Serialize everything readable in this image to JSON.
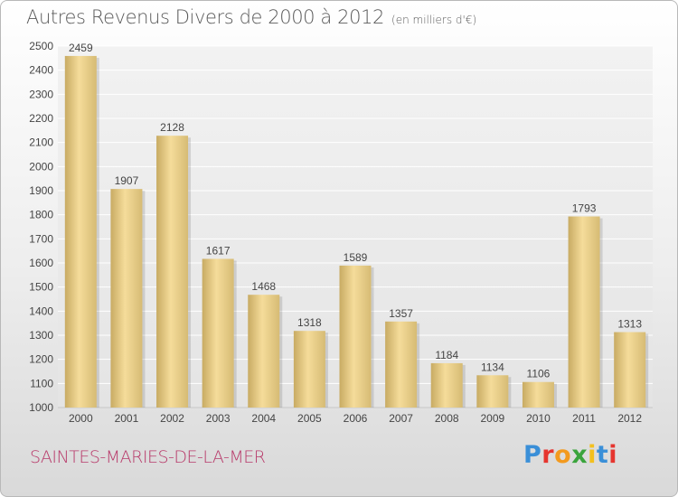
{
  "header": {
    "title": "Autres Revenus Divers de 2000 à 2012",
    "subtitle": "(en milliers d'€)"
  },
  "footer": {
    "commune": "SAINTES-MARIES-DE-LA-MER",
    "logo_text": "Proxiti"
  },
  "colors": {
    "bar_light": "#f5dc9a",
    "bar_dark": "#c8ab63",
    "commune_text": "#b83a6a",
    "logo_letters": [
      "#3a8fd8",
      "#e6352f",
      "#f39a1e",
      "#3aa43c",
      "#f3c01e",
      "#3a8fd8",
      "#e6352f"
    ]
  },
  "chart_data": {
    "type": "bar",
    "title": "Autres Revenus Divers de 2000 à 2012",
    "subtitle": "(en milliers d'€)",
    "categories": [
      "2000",
      "2001",
      "2002",
      "2003",
      "2004",
      "2005",
      "2006",
      "2007",
      "2008",
      "2009",
      "2010",
      "2011",
      "2012"
    ],
    "values": [
      2459,
      1907,
      2128,
      1617,
      1468,
      1318,
      1589,
      1357,
      1184,
      1134,
      1106,
      1793,
      1313
    ],
    "ylim": [
      1000,
      2500
    ],
    "yticks": [
      1000,
      1100,
      1200,
      1300,
      1400,
      1500,
      1600,
      1700,
      1800,
      1900,
      2000,
      2100,
      2200,
      2300,
      2400,
      2500
    ],
    "grid": true,
    "data_labels": true
  }
}
